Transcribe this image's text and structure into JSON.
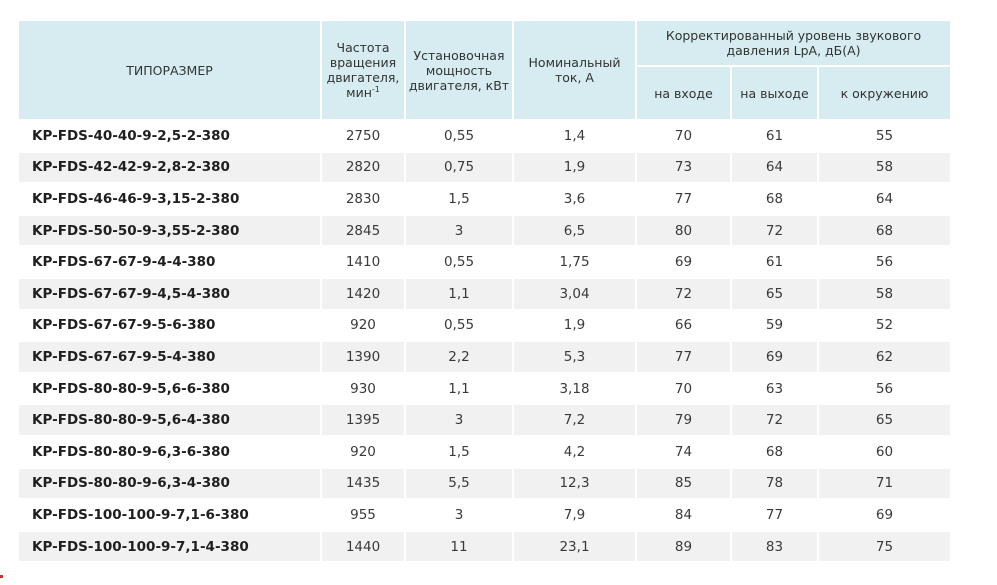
{
  "header": {
    "type": "ТИПОРАЗМЕР",
    "speed": "Частота вращения двигателя, мин",
    "speed_sup": "-1",
    "power": "Установочная мощность двигателя, кВт",
    "current": "Номинальный ток, А",
    "noise_group": "Корректированный уровень звукового давления LpA, дБ(А)",
    "inlet": "на входе",
    "outlet": "на выходе",
    "surround": "к окружению"
  },
  "rows": [
    {
      "model": "KP-FDS-40-40-9-2,5-2-380",
      "speed": "2750",
      "power": "0,55",
      "current": "1,4",
      "inlet": "70",
      "outlet": "61",
      "surround": "55"
    },
    {
      "model": "KP-FDS-42-42-9-2,8-2-380",
      "speed": "2820",
      "power": "0,75",
      "current": "1,9",
      "inlet": "73",
      "outlet": "64",
      "surround": "58"
    },
    {
      "model": "KP-FDS-46-46-9-3,15-2-380",
      "speed": "2830",
      "power": "1,5",
      "current": "3,6",
      "inlet": "77",
      "outlet": "68",
      "surround": "64"
    },
    {
      "model": "KP-FDS-50-50-9-3,55-2-380",
      "speed": "2845",
      "power": "3",
      "current": "6,5",
      "inlet": "80",
      "outlet": "72",
      "surround": "68"
    },
    {
      "model": "KP-FDS-67-67-9-4-4-380",
      "speed": "1410",
      "power": "0,55",
      "current": "1,75",
      "inlet": "69",
      "outlet": "61",
      "surround": "56"
    },
    {
      "model": "KP-FDS-67-67-9-4,5-4-380",
      "speed": "1420",
      "power": "1,1",
      "current": "3,04",
      "inlet": "72",
      "outlet": "65",
      "surround": "58"
    },
    {
      "model": "KP-FDS-67-67-9-5-6-380",
      "speed": "920",
      "power": "0,55",
      "current": "1,9",
      "inlet": "66",
      "outlet": "59",
      "surround": "52"
    },
    {
      "model": "KP-FDS-67-67-9-5-4-380",
      "speed": "1390",
      "power": "2,2",
      "current": "5,3",
      "inlet": "77",
      "outlet": "69",
      "surround": "62"
    },
    {
      "model": "KP-FDS-80-80-9-5,6-6-380",
      "speed": "930",
      "power": "1,1",
      "current": "3,18",
      "inlet": "70",
      "outlet": "63",
      "surround": "56"
    },
    {
      "model": "KP-FDS-80-80-9-5,6-4-380",
      "speed": "1395",
      "power": "3",
      "current": "7,2",
      "inlet": "79",
      "outlet": "72",
      "surround": "65"
    },
    {
      "model": "KP-FDS-80-80-9-6,3-6-380",
      "speed": "920",
      "power": "1,5",
      "current": "4,2",
      "inlet": "74",
      "outlet": "68",
      "surround": "60"
    },
    {
      "model": "KP-FDS-80-80-9-6,3-4-380",
      "speed": "1435",
      "power": "5,5",
      "current": "12,3",
      "inlet": "85",
      "outlet": "78",
      "surround": "71"
    },
    {
      "model": "KP-FDS-100-100-9-7,1-6-380",
      "speed": "955",
      "power": "3",
      "current": "7,9",
      "inlet": "84",
      "outlet": "77",
      "surround": "69"
    },
    {
      "model": "KP-FDS-100-100-9-7,1-4-380",
      "speed": "1440",
      "power": "11",
      "current": "23,1",
      "inlet": "89",
      "outlet": "83",
      "surround": "75"
    }
  ],
  "colors": {
    "header_bg": "#d6ecf0",
    "row_alt_bg": "#f1f1f1"
  }
}
